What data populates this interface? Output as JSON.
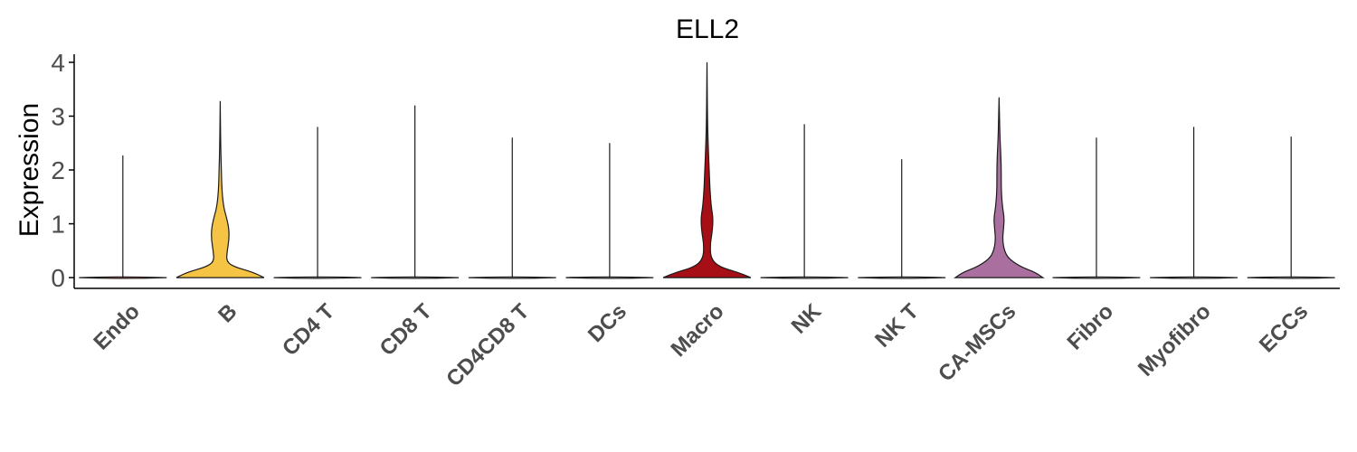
{
  "chart_data": {
    "type": "violin",
    "title": "ELL2",
    "xlabel": "",
    "ylabel": "Expression",
    "ylim": [
      -0.2,
      4.15
    ],
    "yticks": [
      0,
      1,
      2,
      3,
      4
    ],
    "categories": [
      "Endo",
      "B",
      "CD4 T",
      "CD8 T",
      "CD4CD8 T",
      "DCs",
      "Macro",
      "NK",
      "NK T",
      "CA-MSCs",
      "Fibro",
      "Myofibro",
      "ECCs"
    ],
    "max_values": [
      2.27,
      3.28,
      2.8,
      3.2,
      2.6,
      2.5,
      4.0,
      2.85,
      2.2,
      3.35,
      2.6,
      2.8,
      2.62
    ],
    "fill_colors": [
      "#F8766D",
      "#F6C445",
      "#E6E6E6",
      "#E6E6E6",
      "#E6E6E6",
      "#E6E6E6",
      "#A50F15",
      "#E6E6E6",
      "#E6E6E6",
      "#A9709F",
      "#E6E6E6",
      "#E6E6E6",
      "#E6E6E6"
    ],
    "profiles": [
      {
        "name": "Endo",
        "shape": "zero"
      },
      {
        "name": "B",
        "shape": "bimodal",
        "points": [
          [
            0,
            1.0
          ],
          [
            0.1,
            0.75
          ],
          [
            0.2,
            0.32
          ],
          [
            0.3,
            0.14
          ],
          [
            0.5,
            0.16
          ],
          [
            0.7,
            0.2
          ],
          [
            0.9,
            0.2
          ],
          [
            1.1,
            0.15
          ],
          [
            1.3,
            0.08
          ],
          [
            1.6,
            0.04
          ],
          [
            2.0,
            0.025
          ],
          [
            2.5,
            0.01
          ],
          [
            3.28,
            0.0
          ]
        ]
      },
      {
        "name": "CD4 T",
        "shape": "zero"
      },
      {
        "name": "CD8 T",
        "shape": "zero"
      },
      {
        "name": "CD4CD8 T",
        "shape": "zero"
      },
      {
        "name": "DCs",
        "shape": "zero"
      },
      {
        "name": "Macro",
        "shape": "bimodal",
        "points": [
          [
            0,
            1.0
          ],
          [
            0.1,
            0.7
          ],
          [
            0.2,
            0.28
          ],
          [
            0.35,
            0.09
          ],
          [
            0.6,
            0.07
          ],
          [
            0.85,
            0.12
          ],
          [
            1.1,
            0.14
          ],
          [
            1.3,
            0.1
          ],
          [
            1.6,
            0.07
          ],
          [
            2.0,
            0.05
          ],
          [
            2.5,
            0.025
          ],
          [
            3.0,
            0.01
          ],
          [
            4.0,
            0.0
          ]
        ]
      },
      {
        "name": "NK",
        "shape": "zero"
      },
      {
        "name": "NK T",
        "shape": "zero"
      },
      {
        "name": "CA-MSCs",
        "shape": "bimodal",
        "points": [
          [
            0,
            1.0
          ],
          [
            0.1,
            0.82
          ],
          [
            0.2,
            0.5
          ],
          [
            0.35,
            0.22
          ],
          [
            0.5,
            0.12
          ],
          [
            0.7,
            0.08
          ],
          [
            0.9,
            0.1
          ],
          [
            1.1,
            0.12
          ],
          [
            1.3,
            0.08
          ],
          [
            1.6,
            0.05
          ],
          [
            2.0,
            0.05
          ],
          [
            2.3,
            0.04
          ],
          [
            2.6,
            0.02
          ],
          [
            3.35,
            0.0
          ]
        ]
      },
      {
        "name": "Fibro",
        "shape": "zero"
      },
      {
        "name": "Myofibro",
        "shape": "zero"
      },
      {
        "name": "ECCs",
        "shape": "zero"
      }
    ],
    "grid": false,
    "legend": "none"
  }
}
